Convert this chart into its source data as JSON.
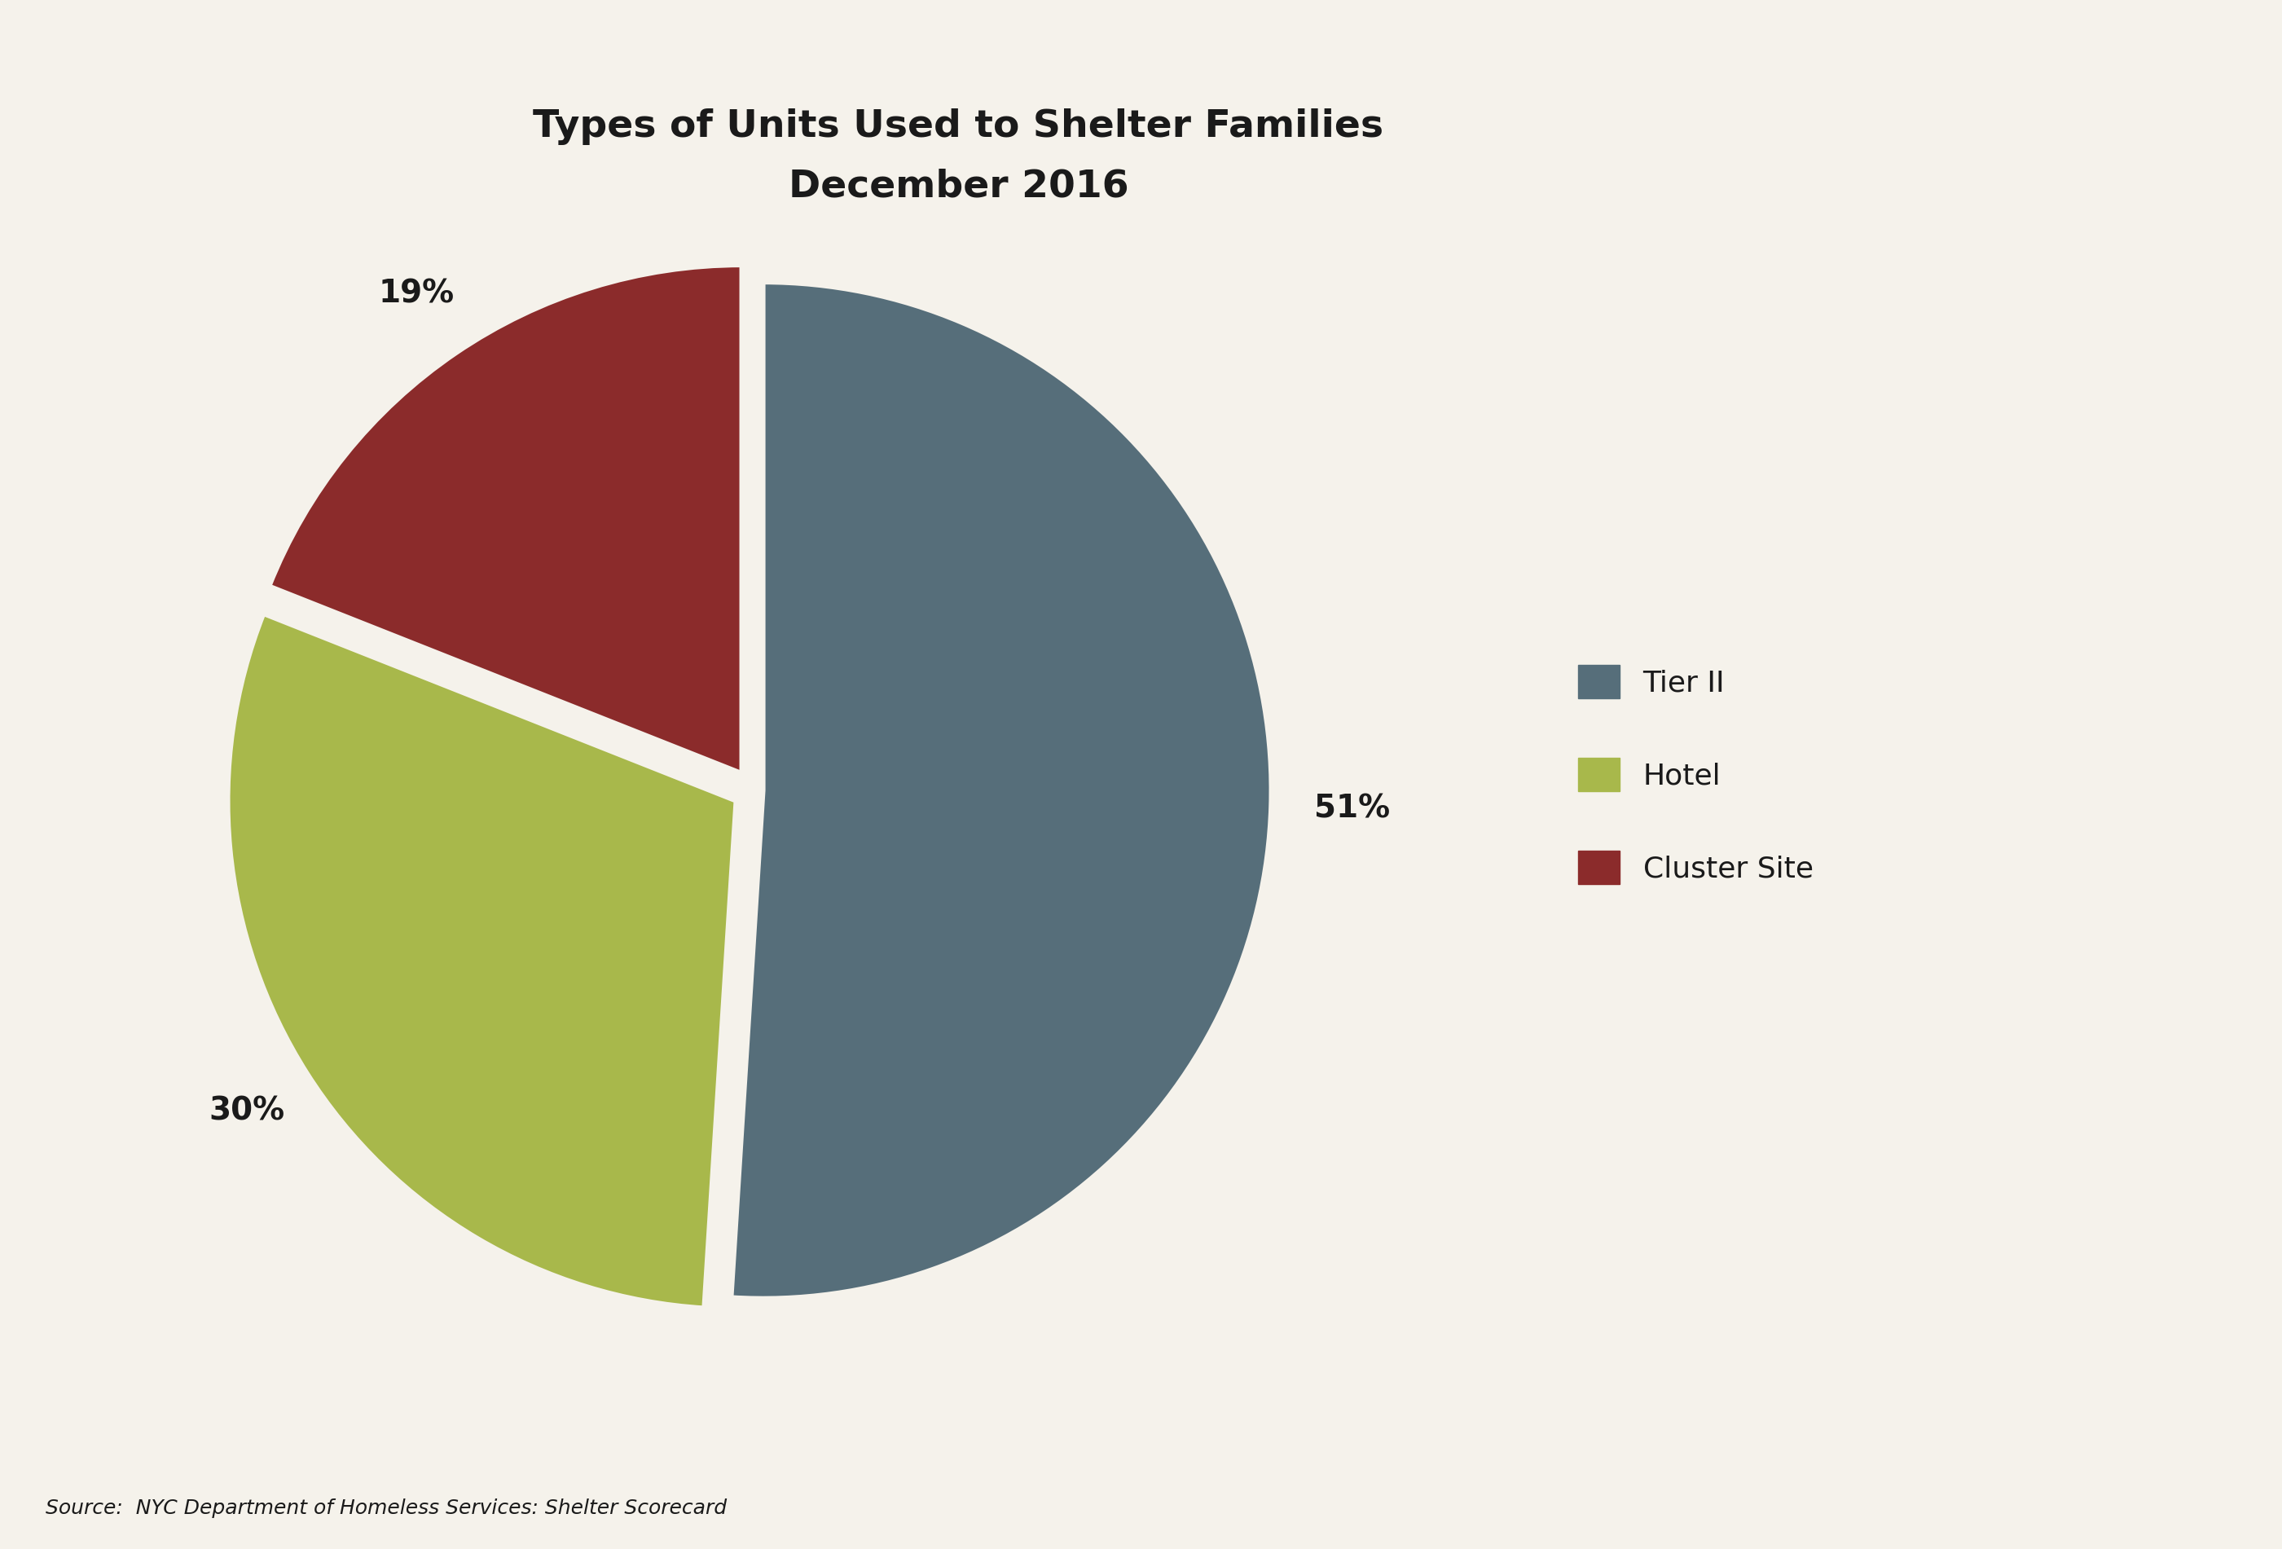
{
  "title_line1": "Types of Units Used to Shelter Families",
  "title_line2": "December 2016",
  "labels": [
    "Tier II",
    "Hotel",
    "Cluster Site"
  ],
  "values": [
    51,
    30,
    19
  ],
  "colors": [
    "#566e7a",
    "#a8b84b",
    "#8b2b2b"
  ],
  "pct_labels": [
    "51%",
    "30%",
    "19%"
  ],
  "legend_labels": [
    "Tier II",
    "Hotel",
    "Cluster Site"
  ],
  "source_text": "Source:  NYC Department of Homeless Services: Shelter Scorecard",
  "background_color": "#f5f2eb",
  "text_color": "#1a1a1a",
  "explode": [
    0.02,
    0.04,
    0.04
  ],
  "startangle": 90,
  "title_fontsize": 34,
  "label_fontsize": 28,
  "legend_fontsize": 26,
  "source_fontsize": 18
}
